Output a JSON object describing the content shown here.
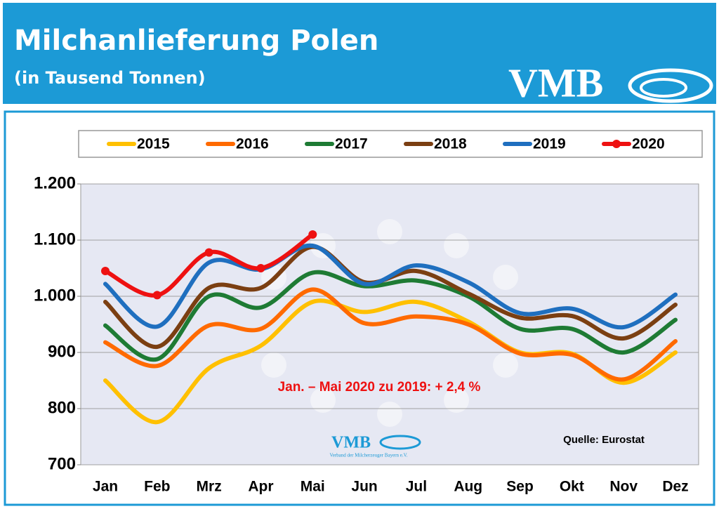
{
  "header": {
    "logo": "VMB"
  },
  "chart_data": {
    "type": "line",
    "title": "Milchanlieferung Polen",
    "subtitle": "(in Tausend Tonnen)",
    "annotation": "Jan. – Mai 2020 zu 2019: + 2,4 %",
    "source": "Quelle: Eurostat",
    "watermark": {
      "text": "VMB",
      "subtext": "Verband der Milcherzeuger Bayern e.V."
    },
    "categories": [
      "Jan",
      "Feb",
      "Mrz",
      "Apr",
      "Mai",
      "Jun",
      "Jul",
      "Aug",
      "Sep",
      "Okt",
      "Nov",
      "Dez"
    ],
    "series": [
      {
        "name": "2015",
        "color": "#ffc000",
        "values": [
          850,
          776,
          872,
          912,
          990,
          972,
          990,
          955,
          900,
          898,
          846,
          900
        ]
      },
      {
        "name": "2016",
        "color": "#ff6a00",
        "values": [
          918,
          876,
          948,
          942,
          1012,
          952,
          964,
          950,
          898,
          896,
          852,
          920
        ]
      },
      {
        "name": "2017",
        "color": "#1e7b34",
        "values": [
          948,
          888,
          1000,
          980,
          1042,
          1018,
          1028,
          1000,
          942,
          942,
          900,
          958
        ]
      },
      {
        "name": "2018",
        "color": "#7b3f12",
        "values": [
          990,
          910,
          1015,
          1015,
          1088,
          1025,
          1045,
          1005,
          962,
          965,
          925,
          985
        ]
      },
      {
        "name": "2019",
        "color": "#1f6fbf",
        "values": [
          1022,
          946,
          1060,
          1048,
          1090,
          1022,
          1055,
          1025,
          970,
          978,
          945,
          1003
        ]
      },
      {
        "name": "2020",
        "color": "#ee1111",
        "marker": true,
        "values": [
          1045,
          1002,
          1078,
          1050,
          1110,
          null,
          null,
          null,
          null,
          null,
          null,
          null
        ]
      }
    ],
    "ylim": [
      700,
      1200
    ],
    "yticks": [
      700,
      800,
      900,
      {
        "value": 1000,
        "label": "1.000"
      },
      {
        "value": 1100,
        "label": "1.100"
      },
      {
        "value": 1200,
        "label": "1.200"
      }
    ],
    "grid": true,
    "legend": "top"
  }
}
